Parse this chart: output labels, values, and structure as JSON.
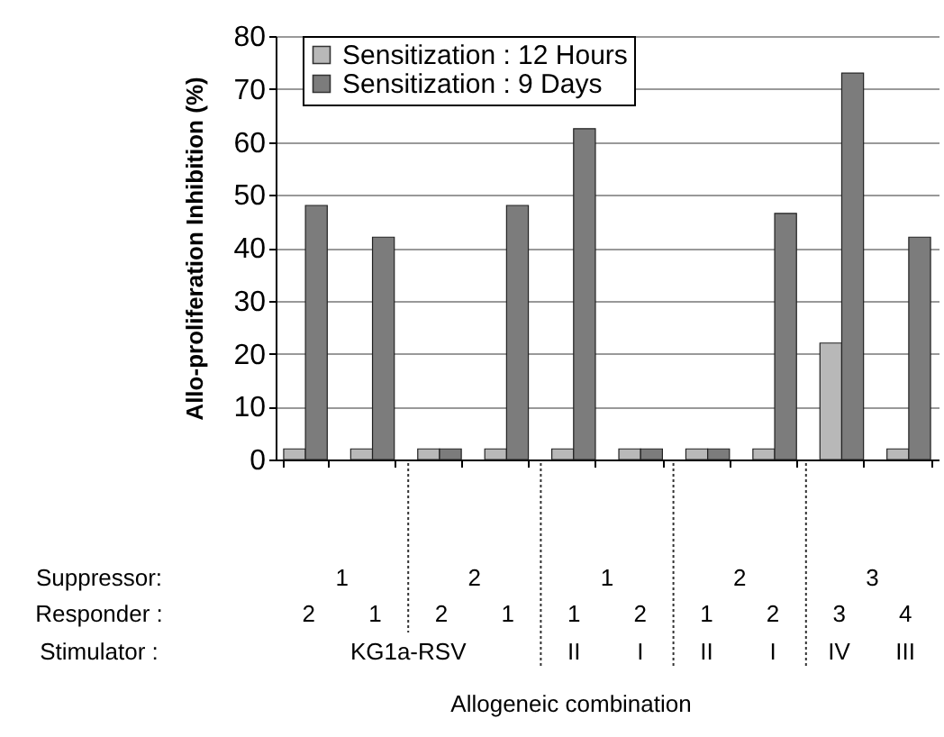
{
  "chart_data": {
    "type": "bar",
    "ylabel": "Allo-proliferation Inhibition (%)",
    "categories": [
      null,
      null,
      null,
      null,
      null,
      null,
      null,
      null,
      null,
      null
    ],
    "series": [
      {
        "name": "Sensitization : 12 Hours",
        "color": "#b8b8b8",
        "values": [
          2,
          2,
          2,
          2,
          2,
          2,
          2,
          2,
          22,
          2
        ]
      },
      {
        "name": "Sensitization : 9 Days",
        "color": "#7c7c7c",
        "values": [
          48,
          42,
          2,
          48,
          62.5,
          2,
          2,
          46.5,
          73,
          42
        ]
      }
    ],
    "ylim": [
      0,
      80
    ],
    "yticks": [
      0,
      10,
      20,
      30,
      40,
      50,
      60,
      70,
      80
    ],
    "grid": "y",
    "legend": "top left",
    "annotations": [
      "Suppressor:",
      "1",
      "2",
      "1",
      "2",
      "3",
      "Responder :",
      "2",
      "1",
      "2",
      "1",
      "1",
      "2",
      "1",
      "2",
      "3",
      "4",
      "Stimulator  :",
      "KG1a-RSV",
      "II",
      "I",
      "II",
      "I",
      "IV",
      "III",
      "Allogeneic combination"
    ]
  }
}
